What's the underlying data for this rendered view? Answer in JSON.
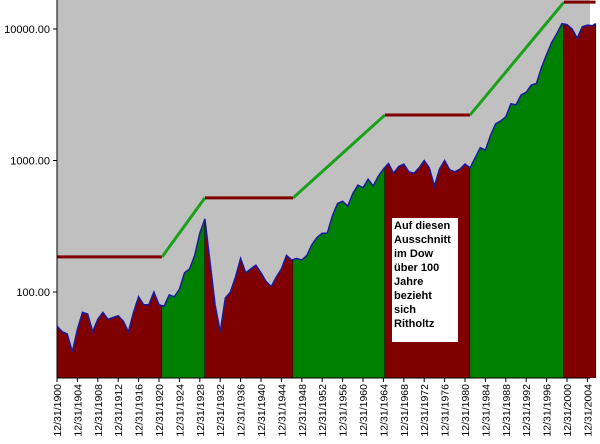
{
  "chart_data": {
    "type": "area",
    "title": "",
    "xlabel": "",
    "ylabel": "",
    "y_scale": "log",
    "ylim": [
      22,
      16600
    ],
    "xlim": [
      1900,
      2005.6
    ],
    "grid": false,
    "y_ticks": [
      {
        "value": 100,
        "label": "100.00"
      },
      {
        "value": 1000,
        "label": "1000.00"
      },
      {
        "value": 10000,
        "label": "10000.00"
      }
    ],
    "x_ticks": [
      "12/31/1900",
      "12/31/1904",
      "12/31/1908",
      "12/31/1912",
      "12/31/1916",
      "12/31/1920",
      "12/31/1924",
      "12/31/1928",
      "12/31/1932",
      "12/31/1936",
      "12/31/1940",
      "12/31/1944",
      "12/31/1948",
      "12/31/1952",
      "12/31/1956",
      "12/31/1960",
      "12/31/1964",
      "12/31/1968",
      "12/31/1972",
      "12/31/1976",
      "12/31/1980",
      "12/31/1984",
      "12/31/1988",
      "12/31/1992",
      "12/31/1996",
      "12/31/2000",
      "12/31/2004"
    ],
    "series": {
      "x": [
        1900,
        1901,
        1902,
        1903,
        1904,
        1905,
        1906,
        1907,
        1908,
        1909,
        1910,
        1911,
        1912,
        1913,
        1914,
        1915,
        1916,
        1917,
        1918,
        1919,
        1920,
        1921,
        1922,
        1923,
        1924,
        1925,
        1926,
        1927,
        1928,
        1929,
        1930,
        1931,
        1932,
        1933,
        1934,
        1935,
        1936,
        1937,
        1938,
        1939,
        1940,
        1941,
        1942,
        1943,
        1944,
        1945,
        1946,
        1947,
        1948,
        1949,
        1950,
        1951,
        1952,
        1953,
        1954,
        1955,
        1956,
        1957,
        1958,
        1959,
        1960,
        1961,
        1962,
        1963,
        1964,
        1965,
        1966,
        1967,
        1968,
        1969,
        1970,
        1971,
        1972,
        1973,
        1974,
        1975,
        1976,
        1977,
        1978,
        1979,
        1980,
        1981,
        1982,
        1983,
        1984,
        1985,
        1986,
        1987,
        1988,
        1989,
        1990,
        1991,
        1992,
        1993,
        1994,
        1995,
        1996,
        1997,
        1998,
        1999,
        2000,
        2001,
        2002,
        2003,
        2004,
        2005,
        2005.6
      ],
      "y": [
        55,
        50,
        48,
        35,
        52,
        70,
        68,
        50,
        62,
        70,
        62,
        64,
        66,
        60,
        50,
        70,
        92,
        80,
        80,
        100,
        80,
        78,
        95,
        92,
        105,
        140,
        150,
        190,
        280,
        360,
        170,
        80,
        50,
        90,
        100,
        130,
        180,
        140,
        150,
        160,
        140,
        120,
        110,
        130,
        150,
        190,
        175,
        180,
        175,
        190,
        230,
        260,
        280,
        280,
        380,
        470,
        490,
        450,
        560,
        650,
        620,
        720,
        640,
        760,
        860,
        950,
        800,
        900,
        940,
        820,
        800,
        880,
        1000,
        880,
        640,
        860,
        1000,
        850,
        820,
        860,
        940,
        880,
        1050,
        1250,
        1200,
        1550,
        1900,
        2000,
        2150,
        2700,
        2650,
        3150,
        3300,
        3750,
        3850,
        5100,
        6400,
        7900,
        9200,
        11000,
        10800,
        10000,
        8500,
        10400,
        10700,
        10600,
        11000
      ],
      "line_color": "#1a1aa0"
    },
    "regimes": [
      {
        "start": 1900,
        "end": 1920.6,
        "type": "sideways",
        "level": 185
      },
      {
        "start": 1920.6,
        "end": 1929,
        "type": "bull",
        "from": 185,
        "to": 520
      },
      {
        "start": 1929,
        "end": 1946.3,
        "type": "sideways",
        "level": 520
      },
      {
        "start": 1946.3,
        "end": 1964.3,
        "type": "bull",
        "from": 520,
        "to": 2220
      },
      {
        "start": 1964.3,
        "end": 1981,
        "type": "sideways",
        "level": 2220
      },
      {
        "start": 1981,
        "end": 1999.4,
        "type": "bull",
        "from": 2220,
        "to": 16000
      },
      {
        "start": 1999.4,
        "end": 2005.6,
        "type": "sideways",
        "level": 16000
      }
    ],
    "colors": {
      "sideways": "#800000",
      "bull": "#008000",
      "background": "#c0c0c0",
      "sideways_line": "#800000",
      "bull_line": "#1aa01a"
    },
    "annotation": [
      "Auf diesen",
      "Ausschnitt",
      "im Dow",
      "über 100",
      "Jahre",
      "bezieht",
      "sich",
      "Ritholtz"
    ]
  }
}
